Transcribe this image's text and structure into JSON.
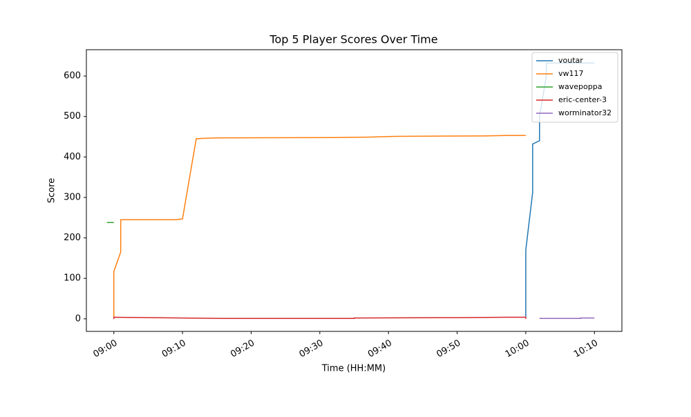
{
  "chart_data": {
    "type": "line",
    "title": "Top 5 Player Scores Over Time",
    "x_label": "Time (HH:MM)",
    "y_label": "Score",
    "xlim": [
      "08:56",
      "10:14"
    ],
    "xticks": [
      "09:00",
      "09:10",
      "09:20",
      "09:30",
      "09:40",
      "09:50",
      "10:00",
      "10:10"
    ],
    "ylim": [
      -31,
      665
    ],
    "yticks": [
      0,
      100,
      200,
      300,
      400,
      500,
      600
    ],
    "legend": "upper right",
    "series": [
      {
        "name": "voutar",
        "color": "#1f77b4",
        "x": [
          "10:00",
          "10:00",
          "10:01",
          "10:01",
          "10:01",
          "10:01",
          "10:02",
          "10:02",
          "10:03",
          "10:03",
          "10:10"
        ],
        "values": [
          5,
          170,
          312,
          315,
          360,
          432,
          440,
          500,
          600,
          632,
          632
        ]
      },
      {
        "name": "vw117",
        "color": "#ff7f0e",
        "x": [
          "09:00",
          "09:00",
          "09:00",
          "09:01",
          "09:01",
          "09:09",
          "09:10",
          "09:12",
          "09:13",
          "09:15",
          "09:32",
          "09:37",
          "09:41",
          "09:54",
          "09:57",
          "10:00"
        ],
        "values": [
          0,
          115,
          117,
          165,
          245,
          245,
          247,
          445,
          446,
          447,
          448,
          449,
          451,
          452,
          453,
          453
        ]
      },
      {
        "name": "wavepoppa",
        "color": "#2ca02c",
        "x": [
          "08:59",
          "09:00"
        ],
        "values": [
          238,
          238
        ]
      },
      {
        "name": "eric-center-3",
        "color": "#d62728",
        "x": [
          "09:00",
          "09:00",
          "09:16",
          "09:35",
          "09:35",
          "09:50",
          "09:57",
          "10:00",
          "10:00"
        ],
        "values": [
          0,
          4,
          1,
          1,
          2,
          3,
          4,
          4,
          0
        ]
      },
      {
        "name": "worminator32",
        "color": "#9467bd",
        "x": [
          "10:02",
          "10:08",
          "10:08",
          "10:10"
        ],
        "values": [
          1,
          1,
          2,
          2
        ]
      }
    ]
  }
}
